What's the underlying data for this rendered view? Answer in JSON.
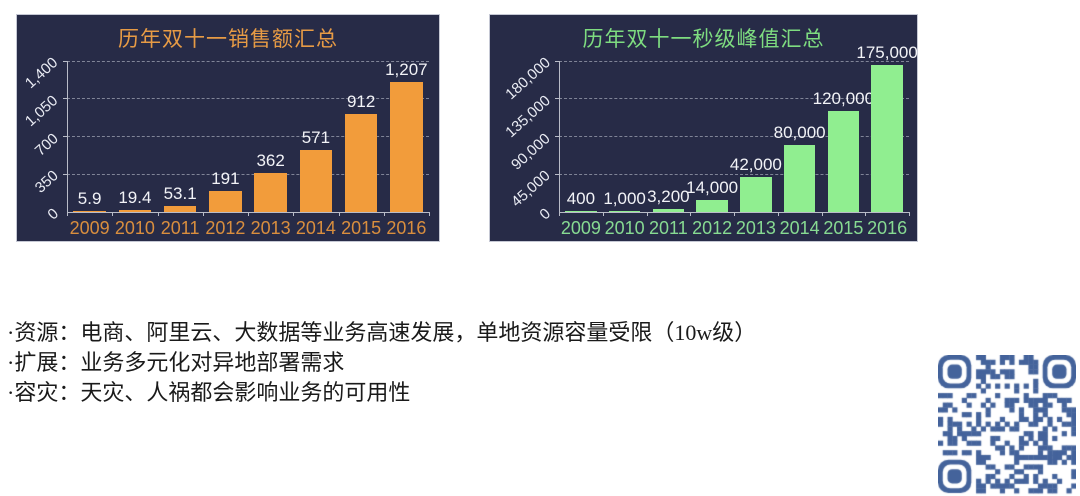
{
  "chart_data": [
    {
      "type": "bar",
      "title": "历年双十一销售额汇总",
      "categories": [
        "2009",
        "2010",
        "2011",
        "2012",
        "2013",
        "2014",
        "2015",
        "2016"
      ],
      "values": [
        5.9,
        19.4,
        53.1,
        191,
        362,
        571,
        912,
        1207
      ],
      "value_labels": [
        "5.9",
        "19.4",
        "53.1",
        "191",
        "362",
        "571",
        "912",
        "1,207"
      ],
      "xlabel": "",
      "ylabel": "",
      "ylim": [
        0,
        1400
      ],
      "yticks": [
        0,
        350,
        700,
        1050,
        1400
      ],
      "ytick_labels": [
        "0",
        "350",
        "700",
        "1,050",
        "1,400"
      ],
      "grid": "horizontal-dashed",
      "legend": "none",
      "colors": {
        "bar": "#F29C3B",
        "title": "#E79B45",
        "x_labels": "#D98E3E",
        "value_labels": "#F2F3F7",
        "ytick_labels": "#E9EBF3",
        "panel_bg": "#272B47",
        "gridline": "#9EA2B2"
      }
    },
    {
      "type": "bar",
      "title": "历年双十一秒级峰值汇总",
      "categories": [
        "2009",
        "2010",
        "2011",
        "2012",
        "2013",
        "2014",
        "2015",
        "2016"
      ],
      "values": [
        400,
        1000,
        3200,
        14000,
        42000,
        80000,
        120000,
        175000
      ],
      "value_labels": [
        "400",
        "1,000",
        "3,200",
        "14,000",
        "42,000",
        "80,000",
        "120,000",
        "175,000"
      ],
      "xlabel": "",
      "ylabel": "",
      "ylim": [
        0,
        180000
      ],
      "yticks": [
        0,
        45000,
        90000,
        135000,
        180000
      ],
      "ytick_labels": [
        "0",
        "45,000",
        "90,000",
        "135,000",
        "180,000"
      ],
      "grid": "horizontal-dashed",
      "legend": "none",
      "colors": {
        "bar": "#90EE90",
        "title": "#7EDC80",
        "x_labels": "#87DA92",
        "value_labels": "#F2F3F7",
        "ytick_labels": "#E9EBF3",
        "panel_bg": "#272B47",
        "gridline": "#9EA2B2"
      }
    }
  ],
  "bullets": {
    "items": [
      "·资源：电商、阿里云、大数据等业务高速发展，单地资源容量受限（10w级）",
      "·扩展：业务多元化对异地部署需求",
      "·容灾：天灾、人祸都会影响业务的可用性"
    ]
  },
  "qr": {
    "name": "qr-code",
    "color": "#44639B",
    "background": "#FFFFFF"
  }
}
